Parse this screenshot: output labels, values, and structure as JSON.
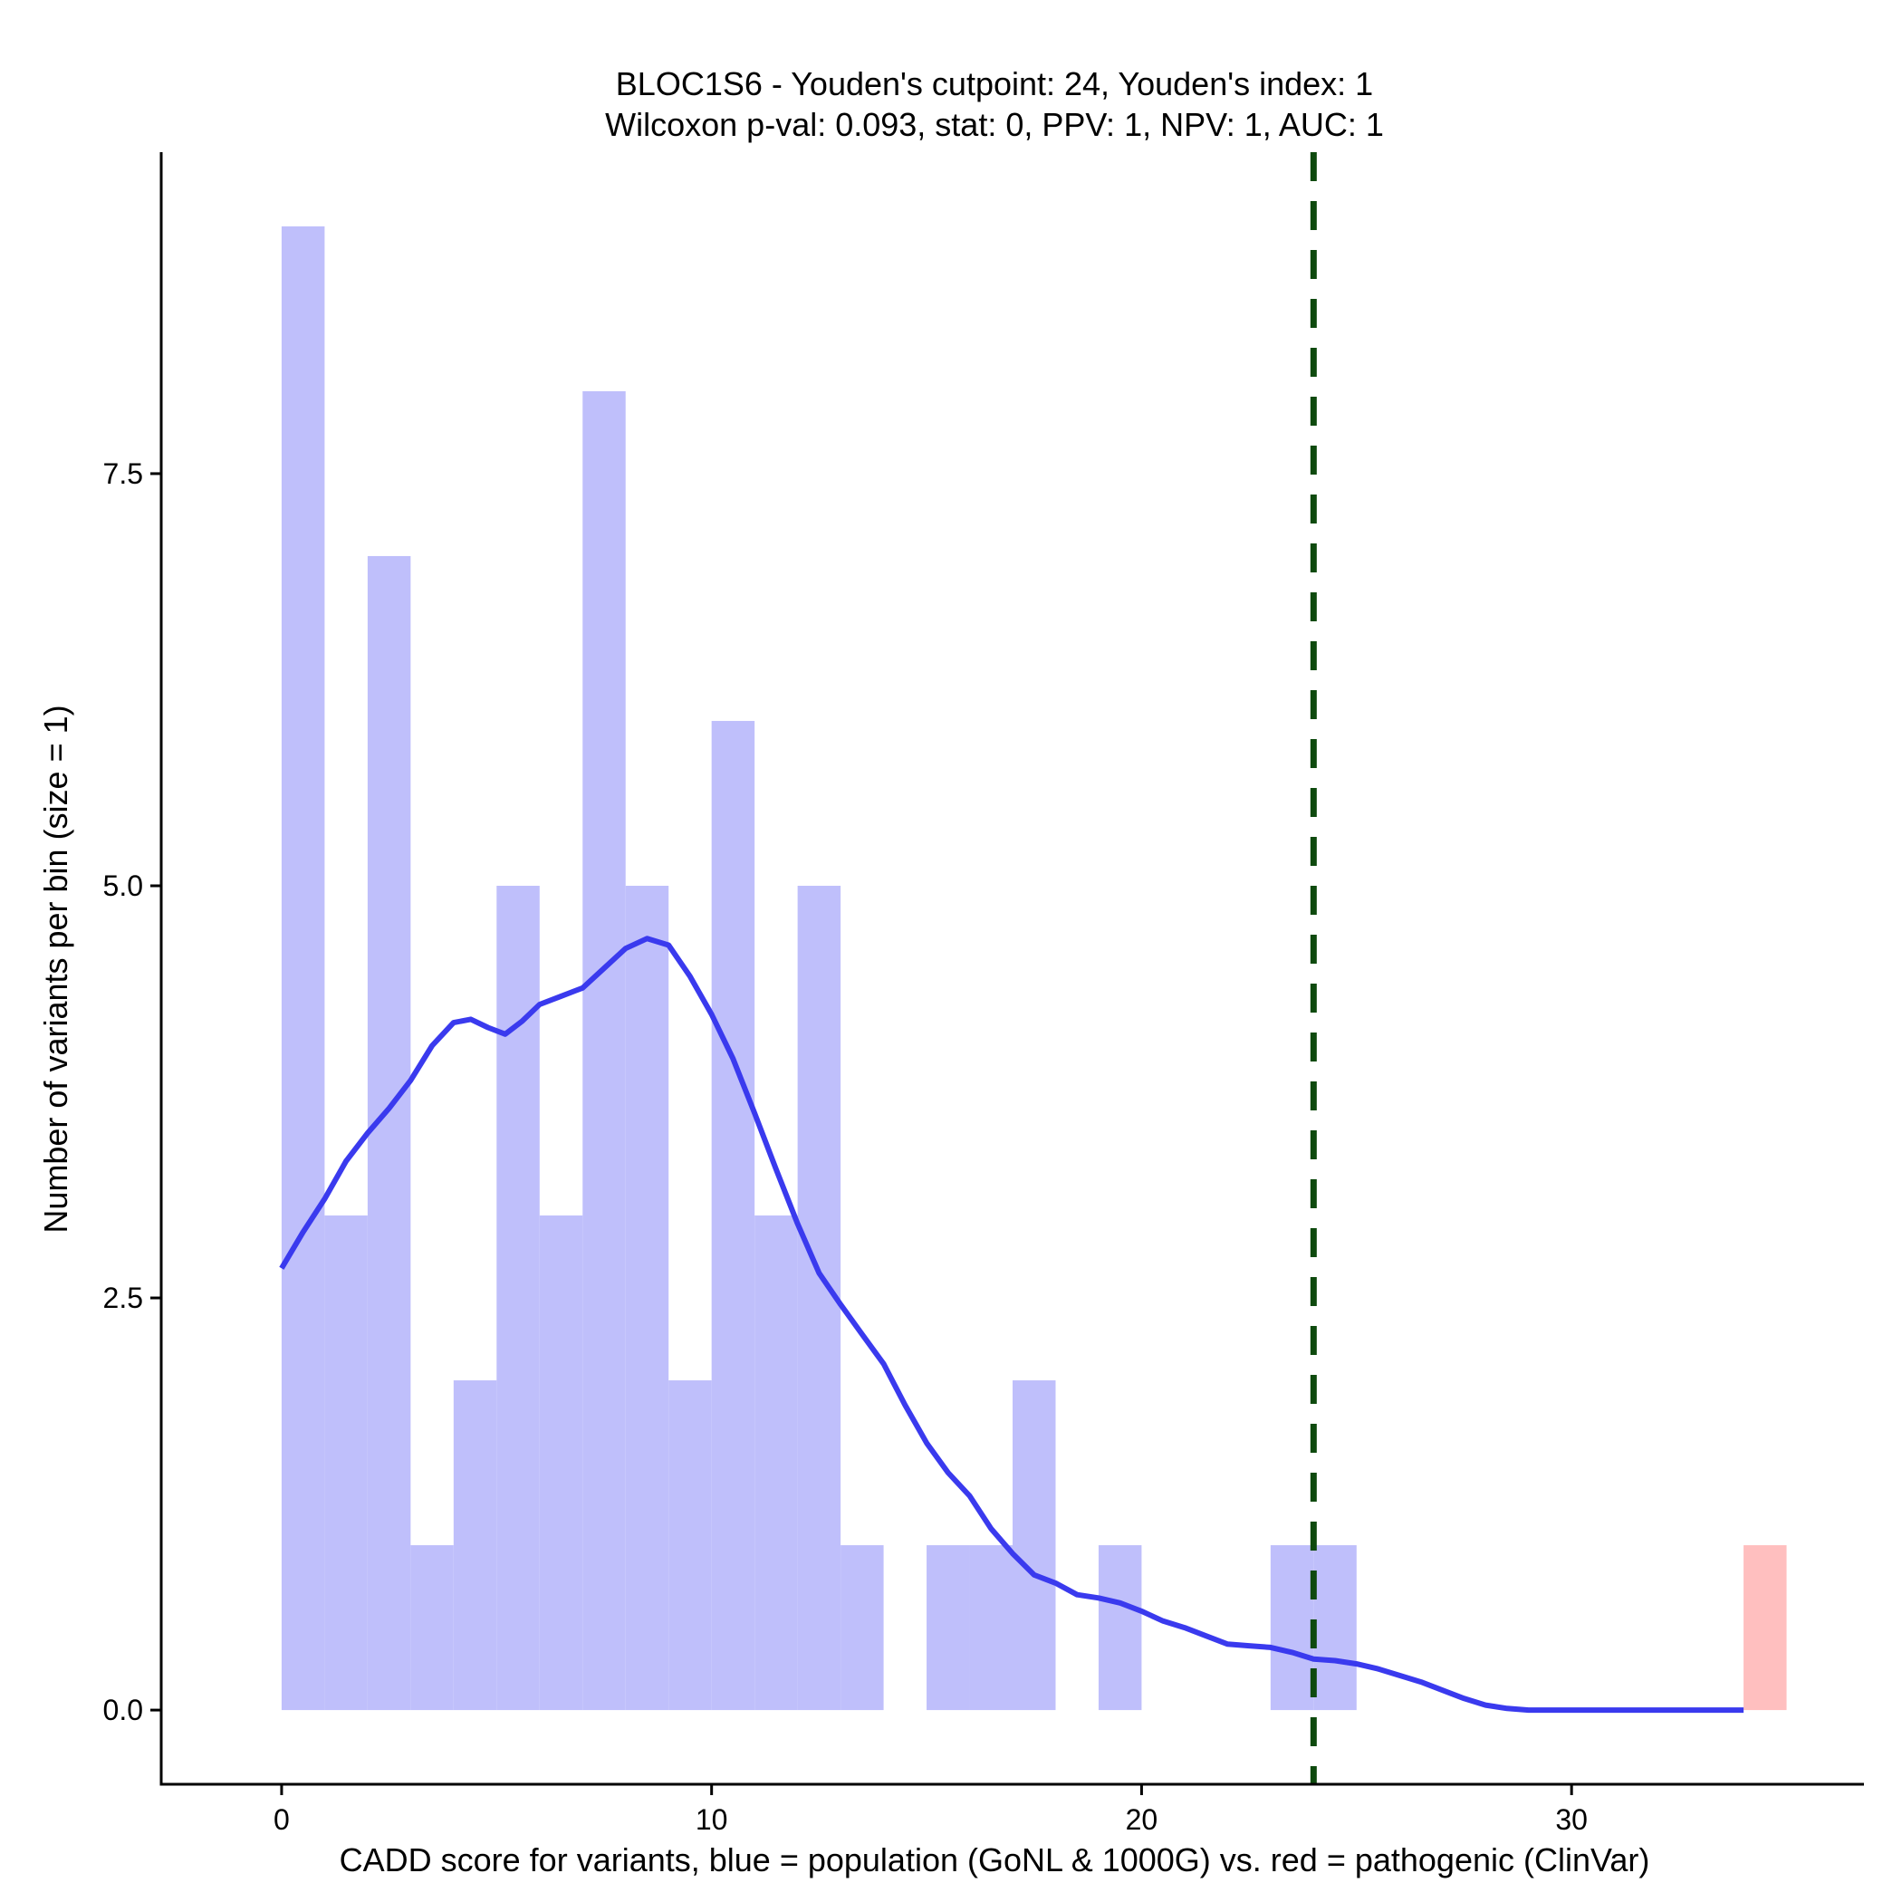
{
  "chart_data": {
    "type": "bar",
    "title_line1": "BLOC1S6 - Youden's cutpoint: 24, Youden's index: 1",
    "title_line2": "Wilcoxon p-val: 0.093, stat: 0, PPV: 1, NPV: 1, AUC: 1",
    "xlabel": "CADD score for variants, blue = population (GoNL & 1000G) vs. red = pathogenic (ClinVar)",
    "ylabel": "Number of variants per bin (size = 1)",
    "xlim": [
      -2.8,
      36.8
    ],
    "ylim": [
      -0.45,
      9.45
    ],
    "x_ticks": [
      0,
      10,
      20,
      30
    ],
    "x_tick_labels": [
      "0",
      "10",
      "20",
      "30"
    ],
    "y_ticks": [
      0,
      2.5,
      5,
      7.5
    ],
    "y_tick_labels": [
      "0.0",
      "2.5",
      "5.0",
      "7.5"
    ],
    "bin_size": 1,
    "series": [
      {
        "color": "#bfbffb",
        "bins": [
          {
            "x0": 0,
            "count": 9
          },
          {
            "x0": 1,
            "count": 3
          },
          {
            "x0": 2,
            "count": 7
          },
          {
            "x0": 3,
            "count": 1
          },
          {
            "x0": 4,
            "count": 2
          },
          {
            "x0": 5,
            "count": 5
          },
          {
            "x0": 6,
            "count": 3
          },
          {
            "x0": 7,
            "count": 8
          },
          {
            "x0": 8,
            "count": 5
          },
          {
            "x0": 9,
            "count": 2
          },
          {
            "x0": 10,
            "count": 6
          },
          {
            "x0": 11,
            "count": 3
          },
          {
            "x0": 12,
            "count": 5
          },
          {
            "x0": 13,
            "count": 1
          },
          {
            "x0": 15,
            "count": 1
          },
          {
            "x0": 16,
            "count": 1
          },
          {
            "x0": 17,
            "count": 2
          },
          {
            "x0": 19,
            "count": 1
          },
          {
            "x0": 23,
            "count": 1
          },
          {
            "x0": 24,
            "count": 1
          }
        ]
      },
      {
        "color": "#ffbfbf",
        "bins": [
          {
            "x0": 34,
            "count": 1
          }
        ]
      }
    ],
    "density_curve": {
      "color": "#3a3aee",
      "points": [
        [
          0,
          2.68
        ],
        [
          0.5,
          2.9
        ],
        [
          1,
          3.1
        ],
        [
          1.5,
          3.33
        ],
        [
          2,
          3.5
        ],
        [
          2.5,
          3.65
        ],
        [
          3,
          3.82
        ],
        [
          3.5,
          4.03
        ],
        [
          4,
          4.17
        ],
        [
          4.4,
          4.19
        ],
        [
          4.8,
          4.14
        ],
        [
          5.2,
          4.1
        ],
        [
          5.6,
          4.18
        ],
        [
          6,
          4.28
        ],
        [
          6.5,
          4.33
        ],
        [
          7,
          4.38
        ],
        [
          7.5,
          4.5
        ],
        [
          8,
          4.62
        ],
        [
          8.5,
          4.68
        ],
        [
          9,
          4.64
        ],
        [
          9.5,
          4.45
        ],
        [
          10,
          4.22
        ],
        [
          10.5,
          3.95
        ],
        [
          11,
          3.62
        ],
        [
          11.5,
          3.28
        ],
        [
          12,
          2.95
        ],
        [
          12.5,
          2.65
        ],
        [
          13,
          2.46
        ],
        [
          13.5,
          2.28
        ],
        [
          14,
          2.1
        ],
        [
          14.5,
          1.85
        ],
        [
          15,
          1.62
        ],
        [
          15.5,
          1.44
        ],
        [
          16,
          1.3
        ],
        [
          16.5,
          1.1
        ],
        [
          17,
          0.95
        ],
        [
          17.5,
          0.82
        ],
        [
          18,
          0.77
        ],
        [
          18.5,
          0.7
        ],
        [
          19,
          0.68
        ],
        [
          19.5,
          0.65
        ],
        [
          20,
          0.6
        ],
        [
          20.5,
          0.54
        ],
        [
          21,
          0.5
        ],
        [
          21.5,
          0.45
        ],
        [
          22,
          0.4
        ],
        [
          22.5,
          0.39
        ],
        [
          23,
          0.38
        ],
        [
          23.5,
          0.35
        ],
        [
          24,
          0.31
        ],
        [
          24.5,
          0.3
        ],
        [
          25,
          0.28
        ],
        [
          25.5,
          0.25
        ],
        [
          26,
          0.21
        ],
        [
          26.5,
          0.17
        ],
        [
          27,
          0.12
        ],
        [
          27.5,
          0.07
        ],
        [
          28,
          0.03
        ],
        [
          28.5,
          0.01
        ],
        [
          29,
          0
        ],
        [
          30,
          0
        ],
        [
          31,
          0
        ],
        [
          32,
          0
        ],
        [
          33,
          0
        ],
        [
          34,
          0
        ]
      ]
    },
    "cutpoint": {
      "x": 24,
      "color": "#0e4a0e"
    },
    "grid": false,
    "legend": "none"
  }
}
